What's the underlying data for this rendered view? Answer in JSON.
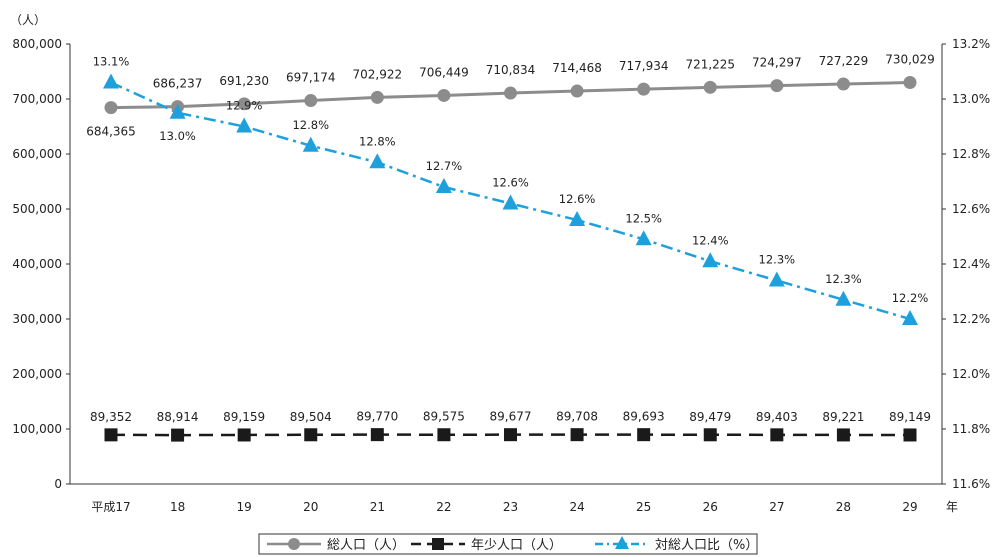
{
  "chart_data": {
    "type": "line",
    "y_unit_label": "（人）",
    "x_unit_label": "年",
    "categories": [
      "平成17",
      "18",
      "19",
      "20",
      "21",
      "22",
      "23",
      "24",
      "25",
      "26",
      "27",
      "28",
      "29"
    ],
    "y_left_ticks": [
      "0",
      "100,000",
      "200,000",
      "300,000",
      "400,000",
      "500,000",
      "600,000",
      "700,000",
      "800,000"
    ],
    "y_left_range": [
      0,
      800000
    ],
    "y_right_ticks": [
      "11.6%",
      "11.8%",
      "12.0%",
      "12.2%",
      "12.4%",
      "12.6%",
      "12.8%",
      "13.0%",
      "13.2%"
    ],
    "y_right_range": [
      11.6,
      13.2
    ],
    "series": [
      {
        "name": "総人口（人）",
        "axis": "left",
        "color": "#8c8c8c",
        "marker": "circle",
        "values": [
          684365,
          686237,
          691230,
          697174,
          702922,
          706449,
          710834,
          714468,
          717934,
          721225,
          724297,
          727229,
          730029
        ],
        "labels": [
          "684,365",
          "686,237",
          "691,230",
          "697,174",
          "702,922",
          "706,449",
          "710,834",
          "714,468",
          "717,934",
          "721,225",
          "724,297",
          "727,229",
          "730,029"
        ]
      },
      {
        "name": "年少人口（人）",
        "axis": "left",
        "color": "#1a1a1a",
        "marker": "square",
        "values": [
          89352,
          88914,
          89159,
          89504,
          89770,
          89575,
          89677,
          89708,
          89693,
          89479,
          89403,
          89221,
          89149
        ],
        "labels": [
          "89,352",
          "88,914",
          "89,159",
          "89,504",
          "89,770",
          "89,575",
          "89,677",
          "89,708",
          "89,693",
          "89,479",
          "89,403",
          "89,221",
          "89,149"
        ]
      },
      {
        "name": "対総人口比（%）",
        "axis": "right",
        "color": "#1ea0dc",
        "marker": "triangle",
        "values": [
          13.06,
          12.95,
          12.9,
          12.83,
          12.77,
          12.68,
          12.62,
          12.56,
          12.49,
          12.41,
          12.34,
          12.27,
          12.2
        ],
        "labels": [
          "13.1%",
          "13.0%",
          "12.9%",
          "12.8%",
          "12.8%",
          "12.7%",
          "12.6%",
          "12.6%",
          "12.5%",
          "12.4%",
          "12.3%",
          "12.3%",
          "12.2%"
        ]
      }
    ],
    "legend_position": "bottom-center",
    "grid": false
  }
}
